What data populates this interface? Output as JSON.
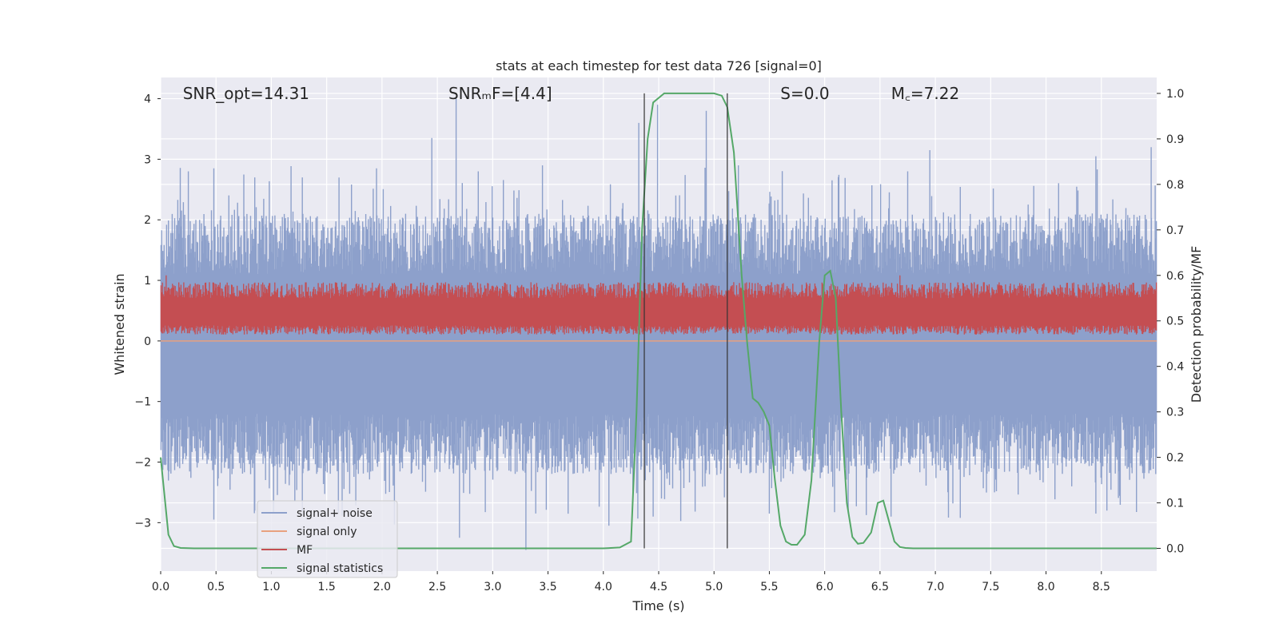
{
  "chart_data": {
    "type": "line",
    "title": "stats at each timestep for test data 726 [signal=0]",
    "xlabel": "Time (s)",
    "ylabel_left": "Whitened strain",
    "ylabel_right": "Detection probability/MF",
    "xlim": [
      0,
      9
    ],
    "ylim_left": [
      -3.8,
      4.35
    ],
    "ylim_right": [
      -0.05,
      1.035
    ],
    "x_ticks": [
      0.0,
      0.5,
      1.0,
      1.5,
      2.0,
      2.5,
      3.0,
      3.5,
      4.0,
      4.5,
      5.0,
      5.5,
      6.0,
      6.5,
      7.0,
      7.5,
      8.0,
      8.5
    ],
    "x_tick_labels": [
      "0.0",
      "0.5",
      "1.0",
      "1.5",
      "2.0",
      "2.5",
      "3.0",
      "3.5",
      "4.0",
      "4.5",
      "5.0",
      "5.5",
      "6.0",
      "6.5",
      "7.0",
      "7.5",
      "8.0",
      "8.5"
    ],
    "y_left_ticks": [
      -3,
      -2,
      -1,
      0,
      1,
      2,
      3,
      4
    ],
    "y_left_tick_labels": [
      "−3",
      "−2",
      "−1",
      "0",
      "1",
      "2",
      "3",
      "4"
    ],
    "y_right_ticks": [
      0.0,
      0.1,
      0.2,
      0.3,
      0.4,
      0.5,
      0.6,
      0.7,
      0.8,
      0.9,
      1.0
    ],
    "y_right_tick_labels": [
      "0.0",
      "0.1",
      "0.2",
      "0.3",
      "0.4",
      "0.5",
      "0.6",
      "0.7",
      "0.8",
      "0.9",
      "1.0"
    ],
    "grid": true,
    "legend_position": "lower-left",
    "annotations": [
      {
        "name": "snr-opt",
        "text": "SNR_opt=14.31",
        "x": 0.2
      },
      {
        "name": "snr-mf",
        "text": "SNRₘF=[4.4]",
        "x": 2.6
      },
      {
        "name": "s-value",
        "text": "S=0.0",
        "x": 5.6
      },
      {
        "name": "mc-value",
        "text": "M꜀=7.22",
        "x": 6.6
      }
    ],
    "vertical_markers": [
      4.37,
      5.12
    ],
    "series": [
      {
        "name": "signal+ noise",
        "axis": "left",
        "color": "#8da0cb",
        "style": "noise",
        "band": [
          -1.2,
          1.1
        ],
        "spikes_up": [
          [
            0.25,
            2.8
          ],
          [
            0.48,
            2.85
          ],
          [
            0.85,
            2.7
          ],
          [
            1.28,
            2.7
          ],
          [
            1.95,
            2.85
          ],
          [
            2.45,
            3.35
          ],
          [
            2.67,
            4.0
          ],
          [
            2.87,
            2.8
          ],
          [
            3.45,
            2.9
          ],
          [
            4.32,
            3.6
          ],
          [
            4.49,
            3.9
          ],
          [
            4.93,
            3.8
          ],
          [
            5.22,
            2.9
          ],
          [
            6.75,
            2.8
          ],
          [
            6.95,
            3.15
          ],
          [
            8.45,
            3.05
          ],
          [
            8.95,
            3.2
          ]
        ],
        "spikes_down": [
          [
            0.48,
            -2.95
          ],
          [
            0.85,
            -2.8
          ],
          [
            1.28,
            -2.8
          ],
          [
            2.7,
            -3.25
          ],
          [
            3.3,
            -3.45
          ],
          [
            4.05,
            -3.05
          ],
          [
            4.45,
            -2.9
          ],
          [
            5.5,
            -2.85
          ],
          [
            6.6,
            -2.9
          ],
          [
            8.45,
            -2.85
          ],
          [
            8.55,
            -2.8
          ]
        ]
      },
      {
        "name": "signal only",
        "axis": "left",
        "color": "#e8a17f",
        "style": "line",
        "x": [
          0,
          9
        ],
        "y": [
          0,
          0
        ]
      },
      {
        "name": "MF",
        "axis": "right",
        "color": "#c44e52",
        "style": "noise",
        "band": [
          0.48,
          0.56
        ],
        "peaks": [
          [
            0.05,
            0.6
          ],
          [
            3.8,
            0.58
          ],
          [
            6.68,
            0.6
          ],
          [
            5.9,
            0.57
          ]
        ]
      },
      {
        "name": "signal statistics",
        "axis": "right",
        "color": "#55a868",
        "style": "line",
        "x": [
          0.0,
          0.07,
          0.12,
          0.18,
          0.3,
          1.0,
          2.0,
          3.0,
          4.0,
          4.15,
          4.25,
          4.3,
          4.35,
          4.4,
          4.45,
          4.55,
          4.7,
          4.9,
          5.0,
          5.07,
          5.12,
          5.18,
          5.25,
          5.3,
          5.35,
          5.4,
          5.45,
          5.5,
          5.55,
          5.6,
          5.65,
          5.7,
          5.75,
          5.82,
          5.88,
          5.95,
          6.0,
          6.05,
          6.1,
          6.15,
          6.2,
          6.25,
          6.3,
          6.35,
          6.42,
          6.48,
          6.53,
          6.58,
          6.63,
          6.68,
          6.73,
          6.8,
          7.0,
          8.0,
          9.0
        ],
        "y": [
          0.2,
          0.03,
          0.005,
          0.001,
          0.0,
          0.0,
          0.0,
          0.0,
          0.0,
          0.002,
          0.015,
          0.3,
          0.7,
          0.9,
          0.98,
          1.0,
          1.0,
          1.0,
          1.0,
          0.995,
          0.97,
          0.87,
          0.6,
          0.45,
          0.33,
          0.32,
          0.3,
          0.27,
          0.15,
          0.05,
          0.015,
          0.008,
          0.008,
          0.03,
          0.15,
          0.45,
          0.6,
          0.61,
          0.55,
          0.3,
          0.1,
          0.025,
          0.01,
          0.012,
          0.035,
          0.1,
          0.105,
          0.06,
          0.015,
          0.003,
          0.001,
          0.0,
          0.0,
          0.0,
          0.0
        ]
      }
    ]
  }
}
